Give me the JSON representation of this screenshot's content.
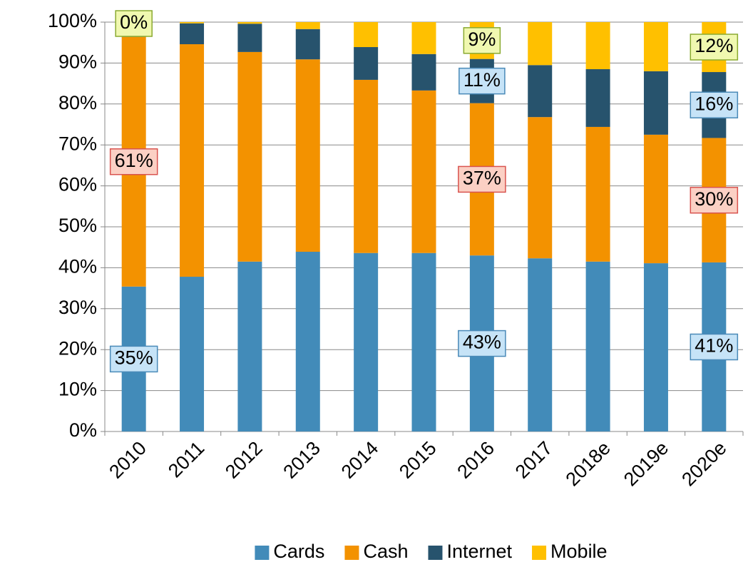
{
  "chart_data": {
    "type": "bar",
    "stacked": true,
    "categories": [
      "2010",
      "2011",
      "2012",
      "2013",
      "2014",
      "2015",
      "2016",
      "2017",
      "2018e",
      "2019e",
      "2020e"
    ],
    "series": [
      {
        "name": "Cards",
        "color": "#428bb9",
        "values": [
          35.4,
          37.8,
          41.5,
          43.9,
          43.6,
          43.6,
          43.0,
          42.3,
          41.5,
          41.1,
          41.3
        ],
        "value_labels": [
          "35%",
          null,
          null,
          null,
          null,
          null,
          "43%",
          null,
          null,
          null,
          "41%"
        ]
      },
      {
        "name": "Cash",
        "color": "#f39200",
        "values": [
          61.0,
          56.8,
          51.2,
          47.0,
          42.3,
          39.7,
          37.2,
          34.5,
          32.9,
          31.4,
          30.4
        ],
        "value_labels": [
          "61%",
          null,
          null,
          null,
          null,
          null,
          "37%",
          null,
          null,
          null,
          "30%"
        ]
      },
      {
        "name": "Internet",
        "color": "#27536d",
        "values": [
          3.6,
          5.1,
          6.9,
          7.4,
          8.0,
          8.9,
          10.8,
          12.7,
          14.1,
          15.5,
          16.1
        ],
        "value_labels": [
          null,
          null,
          null,
          null,
          null,
          null,
          "11%",
          null,
          null,
          null,
          "16%"
        ]
      },
      {
        "name": "Mobile",
        "color": "#ffc000",
        "values": [
          0.0,
          0.3,
          0.4,
          1.7,
          6.1,
          7.8,
          9.0,
          10.5,
          11.5,
          12.0,
          12.2
        ],
        "value_labels": [
          "0%",
          null,
          null,
          null,
          null,
          null,
          "9%",
          null,
          null,
          null,
          "12%"
        ]
      }
    ],
    "ylim": [
      0,
      100
    ],
    "yticks": [
      {
        "value": 0,
        "label": "0%"
      },
      {
        "value": 10,
        "label": "10%"
      },
      {
        "value": 20,
        "label": "20%"
      },
      {
        "value": 30,
        "label": "30%"
      },
      {
        "value": 40,
        "label": "40%"
      },
      {
        "value": 50,
        "label": "50%"
      },
      {
        "value": 60,
        "label": "60%"
      },
      {
        "value": 70,
        "label": "70%"
      },
      {
        "value": 80,
        "label": "80%"
      },
      {
        "value": 90,
        "label": "90%"
      },
      {
        "value": 100,
        "label": "100%"
      }
    ],
    "grid": true,
    "legend": "bottom"
  }
}
